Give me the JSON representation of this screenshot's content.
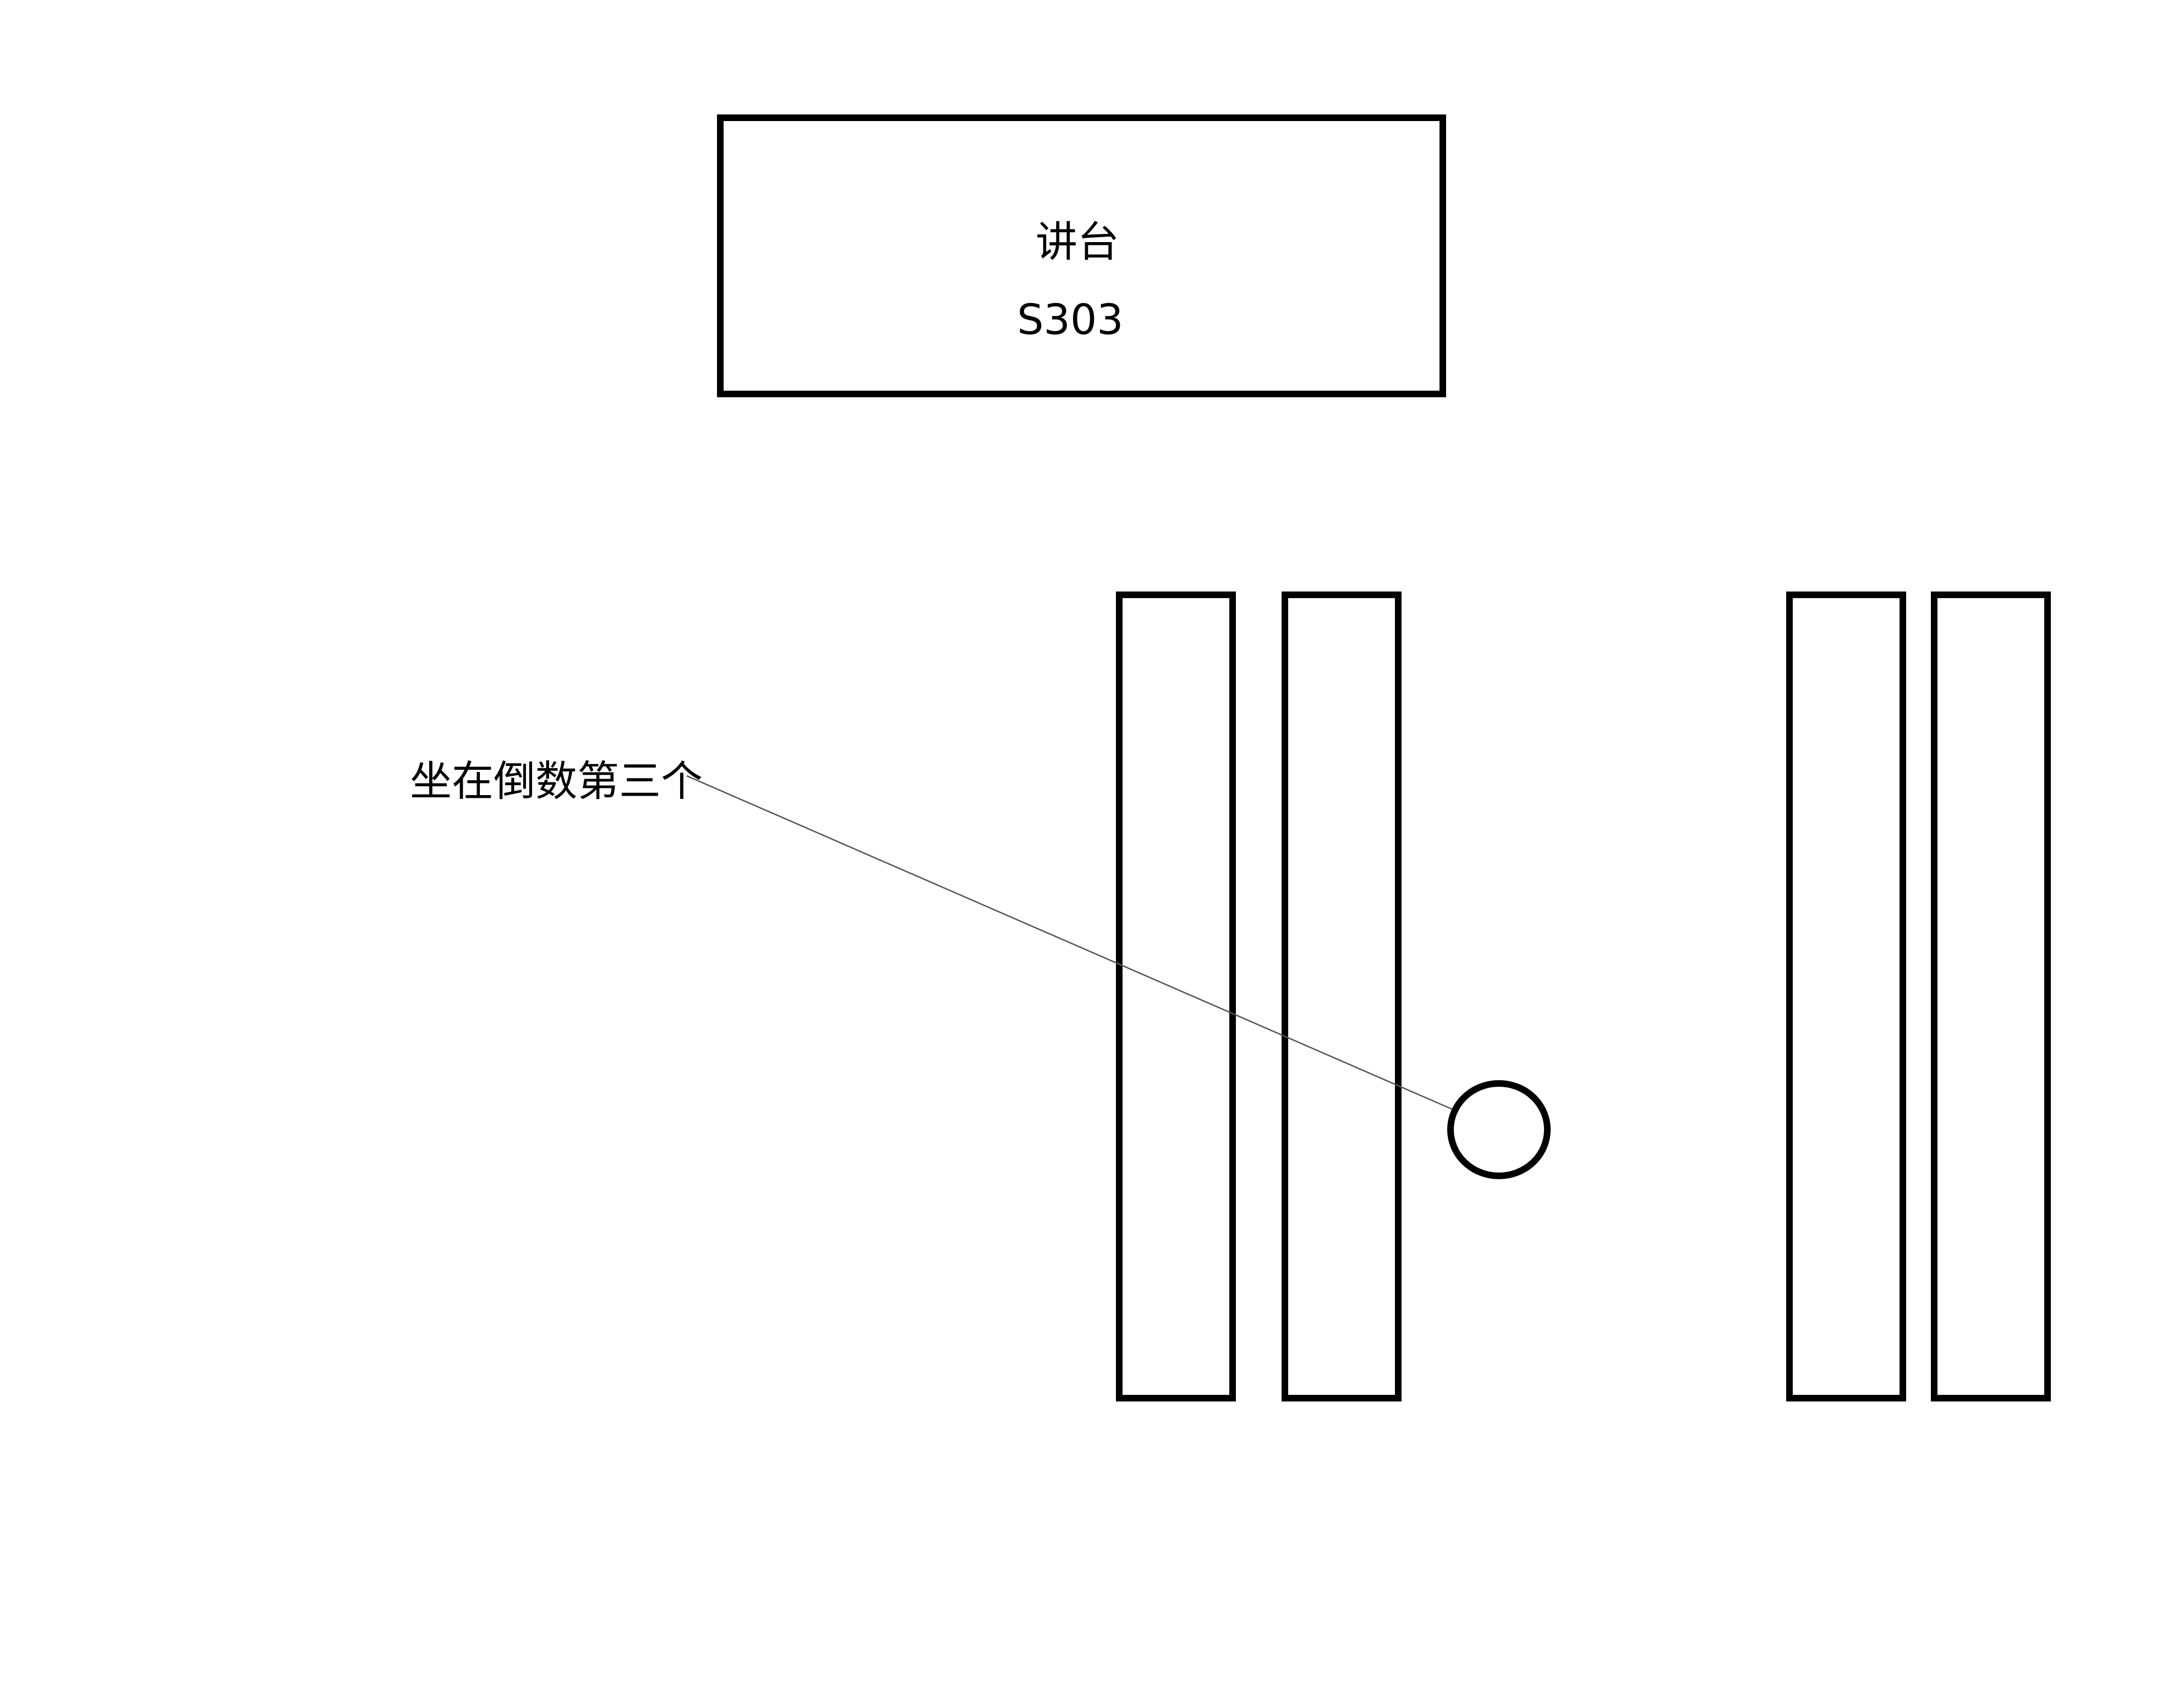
{
  "podium": {
    "label": "讲台",
    "room": "S303"
  },
  "seat_marker": {
    "annotation": "坐在倒数第三个"
  },
  "colors": {
    "stroke": "#000000",
    "leader_line": "#555555",
    "background": "#ffffff"
  }
}
